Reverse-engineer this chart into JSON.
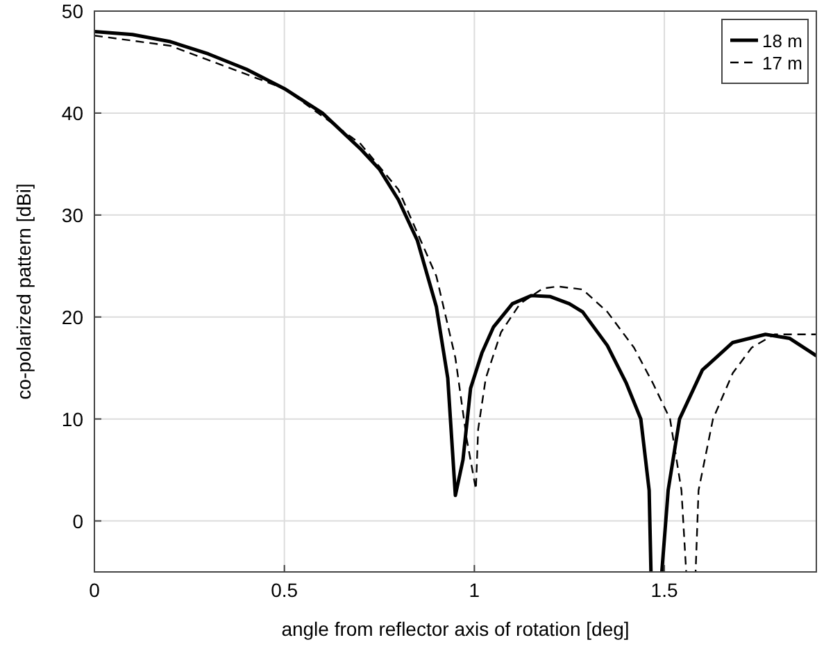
{
  "chart_data": {
    "type": "line",
    "xlabel": "angle from reflector axis of rotation [deg]",
    "ylabel": "co-polarized pattern [dBi]",
    "xlim": [
      0,
      1.9
    ],
    "ylim": [
      -5,
      50
    ],
    "xticks": [
      0,
      0.5,
      1,
      1.5
    ],
    "yticks": [
      0,
      10,
      20,
      30,
      40,
      50
    ],
    "grid": true,
    "legend": "top right",
    "marker": "none",
    "series": [
      {
        "name": "18 m",
        "color": "#000000",
        "line_style": "solid",
        "x": [
          0,
          0.1,
          0.2,
          0.3,
          0.4,
          0.5,
          0.6,
          0.7,
          0.75,
          0.8,
          0.85,
          0.9,
          0.93,
          0.95,
          0.97,
          0.99,
          1.02,
          1.05,
          1.1,
          1.15,
          1.2,
          1.25,
          1.285,
          1.35,
          1.4,
          1.438,
          1.46,
          1.468,
          1.482,
          1.51,
          1.54,
          1.6,
          1.68,
          1.766,
          1.83,
          1.9
        ],
        "values": [
          48,
          47.7,
          47,
          45.8,
          44.3,
          42.4,
          40,
          36.5,
          34.5,
          31.5,
          27.5,
          21,
          14,
          2.5,
          6,
          13,
          16.5,
          19,
          21.3,
          22.1,
          22,
          21.3,
          20.5,
          17.2,
          13.5,
          10,
          3,
          null,
          null,
          3,
          10,
          14.8,
          17.5,
          18.3,
          17.9,
          16.2
        ]
      },
      {
        "name": "17 m",
        "color": "#000000",
        "line_style": "dashed",
        "x": [
          0,
          0.2,
          0.5,
          0.7,
          0.8,
          0.9,
          0.95,
          0.98,
          1.004,
          1.01,
          1.03,
          1.07,
          1.12,
          1.18,
          1.22,
          1.285,
          1.35,
          1.42,
          1.47,
          1.515,
          1.545,
          1.566,
          1.577,
          1.59,
          1.628,
          1.68,
          1.73,
          1.79,
          1.9
        ],
        "values": [
          47.6,
          46.6,
          42.4,
          37,
          32.5,
          24,
          16,
          8,
          3.1,
          9,
          14,
          18.5,
          21.3,
          22.8,
          23,
          22.7,
          20.5,
          17,
          13.5,
          10,
          3,
          null,
          null,
          3,
          10,
          14.5,
          17,
          18.3,
          18.3
        ]
      }
    ]
  }
}
